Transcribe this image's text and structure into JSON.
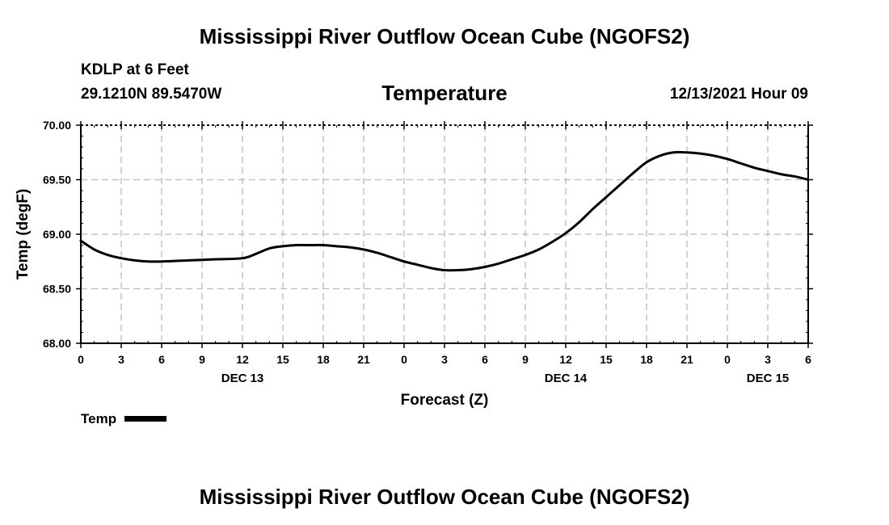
{
  "header": {
    "main_title": "Mississippi River Outflow Ocean Cube (NGOFS2)",
    "station": "KDLP at 6 Feet",
    "coordinates": "29.1210N  89.5470W",
    "chart_title": "Temperature",
    "datetime": "12/13/2021 Hour 09"
  },
  "legend": {
    "label": "Temp"
  },
  "footer": {
    "title": "Mississippi River Outflow Ocean Cube (NGOFS2)"
  },
  "colors": {
    "line": "#000000",
    "grid": "#bbbbbb",
    "background": "#ffffff"
  },
  "chart_data": {
    "type": "line",
    "title": "Temperature",
    "xlabel": "Forecast (Z)",
    "ylabel": "Temp (degF)",
    "ylim": [
      68.0,
      70.0
    ],
    "xlim": [
      0,
      54
    ],
    "grid": true,
    "legend_position": "bottom-left",
    "yticks": [
      68.0,
      68.5,
      69.0,
      69.5,
      70.0
    ],
    "ytick_labels": [
      "68.00",
      "68.50",
      "69.00",
      "69.50",
      "70.00"
    ],
    "xticks": [
      0,
      3,
      6,
      9,
      12,
      15,
      18,
      21,
      24,
      27,
      30,
      33,
      36,
      39,
      42,
      45,
      48,
      51,
      54
    ],
    "xtick_labels": [
      "0",
      "3",
      "6",
      "9",
      "12",
      "15",
      "18",
      "21",
      "0",
      "3",
      "6",
      "9",
      "12",
      "15",
      "18",
      "21",
      "0",
      "3",
      "6"
    ],
    "day_labels": [
      {
        "x": 12,
        "label": "DEC 13"
      },
      {
        "x": 36,
        "label": "DEC 14"
      },
      {
        "x": 51,
        "label": "DEC 15"
      }
    ],
    "series": [
      {
        "name": "Temp",
        "x": [
          0,
          1,
          2,
          3,
          4,
          5,
          6,
          8,
          10,
          12,
          13,
          14,
          15,
          16,
          17,
          18,
          19,
          20,
          21,
          22,
          23,
          24,
          25,
          26,
          27,
          28,
          29,
          30,
          31,
          32,
          33,
          34,
          35,
          36,
          37,
          38,
          39,
          40,
          41,
          42,
          43,
          44,
          45,
          46,
          47,
          48,
          49,
          50,
          51,
          52,
          53,
          54
        ],
        "values": [
          68.94,
          68.86,
          68.81,
          68.78,
          68.76,
          68.75,
          68.75,
          68.76,
          68.77,
          68.78,
          68.82,
          68.87,
          68.89,
          68.9,
          68.9,
          68.9,
          68.89,
          68.88,
          68.86,
          68.83,
          68.79,
          68.75,
          68.72,
          68.69,
          68.67,
          68.67,
          68.68,
          68.7,
          68.73,
          68.77,
          68.81,
          68.86,
          68.93,
          69.01,
          69.11,
          69.23,
          69.34,
          69.45,
          69.56,
          69.66,
          69.72,
          69.75,
          69.75,
          69.74,
          69.72,
          69.69,
          69.65,
          69.61,
          69.58,
          69.55,
          69.53,
          69.5
        ]
      }
    ]
  }
}
